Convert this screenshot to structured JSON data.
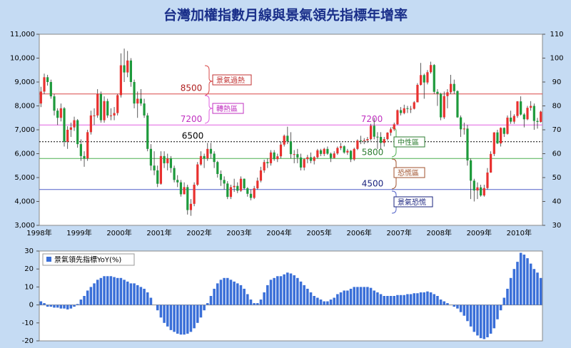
{
  "chart_data": [
    {
      "type": "candlestick",
      "title": "台灣加權指數月線與景氣領先指標年增率",
      "categories": [
        "1998年",
        null,
        null,
        null,
        null,
        null,
        null,
        null,
        null,
        null,
        null,
        null,
        "1999年",
        null,
        null,
        null,
        null,
        null,
        null,
        null,
        null,
        null,
        null,
        null,
        "2000年",
        null,
        null,
        null,
        null,
        null,
        null,
        null,
        null,
        null,
        null,
        null,
        "2001年",
        null,
        null,
        null,
        null,
        null,
        null,
        null,
        null,
        null,
        null,
        null,
        "2002年",
        null,
        null,
        null,
        null,
        null,
        null,
        null,
        null,
        null,
        null,
        null,
        "2003年",
        null,
        null,
        null,
        null,
        null,
        null,
        null,
        null,
        null,
        null,
        null,
        "2004年",
        null,
        null,
        null,
        null,
        null,
        null,
        null,
        null,
        null,
        null,
        null,
        "2005年",
        null,
        null,
        null,
        null,
        null,
        null,
        null,
        null,
        null,
        null,
        null,
        "2006年",
        null,
        null,
        null,
        null,
        null,
        null,
        null,
        null,
        null,
        null,
        null,
        "2007年",
        null,
        null,
        null,
        null,
        null,
        null,
        null,
        null,
        null,
        null,
        null,
        "2008年",
        null,
        null,
        null,
        null,
        null,
        null,
        null,
        null,
        null,
        null,
        null,
        "2009年",
        null,
        null,
        null,
        null,
        null,
        null,
        null,
        null,
        null,
        null,
        null,
        "2010年",
        null,
        null,
        null,
        null,
        null,
        null
      ],
      "open": [
        8100,
        8600,
        9200,
        9000,
        8400,
        7800,
        7500,
        7900,
        6500,
        7000,
        7100,
        7400,
        6400,
        5900,
        5800,
        6900,
        7600,
        7600,
        8500,
        7400,
        8200,
        7600,
        7600,
        7700,
        8450,
        9700,
        9400,
        9900,
        9000,
        8100,
        8300,
        8100,
        7600,
        6200,
        5500,
        5300,
        4740,
        5900,
        5600,
        5800,
        5400,
        4900,
        4800,
        4300,
        4600,
        3640,
        3900,
        4700,
        5550,
        5900,
        5800,
        6200,
        6000,
        5650,
        5150,
        4900,
        4750,
        4190,
        4600,
        4650,
        4450,
        4950,
        4550,
        4320,
        4150,
        4550,
        4870,
        5300,
        5650,
        5600,
        6050,
        5770,
        5890,
        6380,
        6750,
        6520,
        5980,
        5980,
        5840,
        5420,
        5770,
        5850,
        5700,
        5850,
        6140,
        5990,
        6200,
        6000,
        5820,
        6010,
        6240,
        6310,
        6050,
        6120,
        5760,
        6200,
        6550,
        6530,
        6560,
        6610,
        7170,
        6710,
        6700,
        6450,
        6610,
        6880,
        7020,
        7230,
        7820,
        7700,
        7900,
        7880,
        7880,
        8150,
        8880,
        9290,
        8980,
        9410,
        9710,
        8590,
        8510,
        7520,
        8410,
        8570,
        8920,
        8620,
        7520,
        7020,
        7050,
        5720,
        4870,
        4460,
        4590,
        4250,
        4560,
        5210,
        5990,
        6890,
        6430,
        7080,
        6830,
        7510,
        7340,
        7580,
        8190,
        7640,
        7440,
        7920,
        8000,
        7370,
        7330
      ],
      "high": [
        8800,
        9350,
        9300,
        9100,
        8500,
        7900,
        8100,
        7950,
        7150,
        7300,
        7550,
        7450,
        6600,
        6100,
        7000,
        7800,
        7900,
        8700,
        8600,
        8400,
        8300,
        7900,
        7950,
        8500,
        10200,
        10400,
        10300,
        10000,
        9100,
        8600,
        8700,
        8300,
        7700,
        6400,
        6100,
        5500,
        6100,
        6100,
        6000,
        5900,
        5500,
        5100,
        4900,
        4800,
        4700,
        4100,
        4800,
        5650,
        6100,
        6000,
        6450,
        6450,
        6100,
        5700,
        5300,
        5050,
        4850,
        4700,
        4950,
        4800,
        5050,
        4960,
        4600,
        4500,
        4650,
        5000,
        5450,
        5750,
        5800,
        6150,
        6150,
        6000,
        6500,
        6800,
        7130,
        6900,
        6150,
        6200,
        6000,
        5800,
        5950,
        6050,
        5900,
        6200,
        6200,
        6250,
        6300,
        6050,
        6100,
        6300,
        6450,
        6350,
        6200,
        6150,
        6250,
        6600,
        6750,
        6650,
        6700,
        7250,
        7500,
        6900,
        6900,
        6700,
        6900,
        7100,
        7300,
        7850,
        7950,
        8050,
        8000,
        8000,
        8200,
        8950,
        9800,
        9350,
        9500,
        9850,
        9750,
        8700,
        8550,
        8600,
        8700,
        9300,
        9100,
        8650,
        7600,
        7300,
        7200,
        5800,
        4950,
        4800,
        4700,
        4700,
        5400,
        6100,
        6900,
        7000,
        7100,
        7100,
        7600,
        7800,
        7650,
        8200,
        8400,
        7700,
        8000,
        8200,
        8100,
        7500,
        7800
      ],
      "low": [
        7950,
        8500,
        8850,
        8300,
        7600,
        7200,
        7350,
        6300,
        6200,
        6700,
        6950,
        6250,
        5700,
        5450,
        5700,
        6800,
        7200,
        7500,
        7300,
        7300,
        7500,
        7400,
        7400,
        7600,
        8350,
        9000,
        9200,
        8800,
        7900,
        7500,
        8000,
        7500,
        6100,
        5300,
        5100,
        4600,
        4700,
        5400,
        5300,
        5200,
        4800,
        4600,
        4200,
        4300,
        3450,
        3400,
        3800,
        4650,
        5500,
        5400,
        5700,
        5800,
        5400,
        5000,
        4650,
        4500,
        4100,
        4100,
        4400,
        4350,
        4400,
        4500,
        4200,
        4050,
        4100,
        4500,
        4800,
        5200,
        5400,
        5500,
        5700,
        5650,
        5800,
        6300,
        6400,
        5800,
        5600,
        5600,
        5300,
        5300,
        5600,
        5600,
        5550,
        5800,
        5900,
        5900,
        5950,
        5650,
        5800,
        5950,
        6150,
        6000,
        5950,
        5650,
        5700,
        6150,
        6400,
        6400,
        6450,
        6550,
        6600,
        6200,
        6200,
        6300,
        6550,
        6750,
        6950,
        7200,
        7600,
        7650,
        7700,
        7700,
        7850,
        8150,
        8850,
        8300,
        8900,
        9350,
        8500,
        8000,
        7400,
        7450,
        7900,
        8500,
        8500,
        7500,
        6700,
        6800,
        5500,
        4100,
        4000,
        4100,
        4200,
        4200,
        4500,
        5200,
        5900,
        6400,
        6300,
        6700,
        6800,
        7250,
        7250,
        7500,
        7600,
        7100,
        7400,
        7800,
        7000,
        7050,
        7300
      ],
      "close": [
        8600,
        9200,
        9000,
        8400,
        7800,
        7500,
        7900,
        6500,
        7000,
        7100,
        7400,
        6400,
        5900,
        5800,
        6900,
        7600,
        7600,
        8500,
        7400,
        8200,
        7600,
        7600,
        7700,
        8450,
        9700,
        9400,
        9900,
        9000,
        8100,
        8300,
        8100,
        7600,
        6200,
        5500,
        5300,
        4740,
        5900,
        5600,
        5800,
        5400,
        4900,
        4800,
        4300,
        4600,
        3640,
        3900,
        4700,
        5550,
        5900,
        5800,
        6200,
        6000,
        5650,
        5150,
        4900,
        4750,
        4190,
        4600,
        4650,
        4450,
        4950,
        4550,
        4320,
        4150,
        4550,
        4870,
        5300,
        5650,
        5600,
        6050,
        5770,
        5890,
        6380,
        6750,
        6520,
        5980,
        5980,
        5840,
        5420,
        5770,
        5850,
        5700,
        5850,
        6140,
        5990,
        6200,
        6000,
        5820,
        6010,
        6240,
        6310,
        6050,
        6120,
        5760,
        6200,
        6550,
        6530,
        6560,
        6610,
        7170,
        6710,
        6700,
        6450,
        6610,
        6880,
        7020,
        7230,
        7820,
        7700,
        7900,
        7880,
        7880,
        8150,
        8880,
        9290,
        8980,
        9410,
        9710,
        8590,
        8510,
        7520,
        8410,
        8570,
        8920,
        8620,
        7520,
        7020,
        7050,
        5720,
        4870,
        4460,
        4590,
        4250,
        4560,
        5210,
        5990,
        6890,
        6430,
        7080,
        6830,
        7510,
        7340,
        7580,
        8190,
        7640,
        7440,
        7920,
        8000,
        7370,
        7330,
        7760
      ],
      "up_color": "#e8312f",
      "down_color": "#1e9a3c",
      "ylim": [
        3000,
        11000
      ],
      "yticks": [
        {
          "value": 3000,
          "label": "3,000"
        },
        {
          "value": 4000,
          "label": "4,000"
        },
        {
          "value": 5000,
          "label": "5,000"
        },
        {
          "value": 6000,
          "label": "6,000"
        },
        {
          "value": 7000,
          "label": "7,000"
        },
        {
          "value": 8000,
          "label": "8,000"
        },
        {
          "value": 9000,
          "label": "9,000"
        },
        {
          "value": 10000,
          "label": "10,000"
        },
        {
          "value": 11000,
          "label": "11,000"
        }
      ],
      "y2lim": [
        30,
        110
      ],
      "y2ticks": [
        30,
        40,
        50,
        60,
        70,
        80,
        90,
        100,
        110
      ],
      "ref_lines": [
        {
          "value": 8500,
          "color": "#d94848",
          "text_color": "#b02020",
          "dash": false
        },
        {
          "value": 7200,
          "color": "#e060e0",
          "text_color": "#c030c0",
          "dash": false
        },
        {
          "value": 6500,
          "color": "#000000",
          "text_color": "#000000",
          "dash": true
        },
        {
          "value": 5800,
          "color": "#4caf50",
          "text_color": "#2e7d32",
          "dash": false
        },
        {
          "value": 4500,
          "color": "#5060c8",
          "text_color": "#1a237e",
          "dash": false
        }
      ],
      "annotations": [
        {
          "text": "景氣過熱",
          "color": "#c03030"
        },
        {
          "text": "轉熱區",
          "color": "#c030c0"
        },
        {
          "text": "中性區",
          "color": "#2e7d32"
        },
        {
          "text": "恐慌區",
          "color": "#a0522d"
        },
        {
          "text": "景氣恐慌",
          "color": "#1a237e"
        }
      ]
    },
    {
      "type": "bar",
      "series": [
        {
          "name": "景氣領先指標YoY(%)",
          "color": "#3a6fd8",
          "values": [
            2,
            1,
            -1,
            -1,
            -1.5,
            -1.5,
            -2,
            -2,
            -2.5,
            -2,
            -1,
            0.5,
            3,
            5,
            8,
            10,
            12,
            14,
            15,
            16,
            16,
            16,
            15.5,
            15,
            15,
            14,
            13,
            12,
            12,
            11,
            10,
            9,
            7,
            4,
            0,
            -3,
            -7,
            -10,
            -12,
            -14,
            -15,
            -16,
            -16.5,
            -16.5,
            -16,
            -15,
            -13,
            -10,
            -7,
            -3,
            1,
            5,
            9,
            12,
            14,
            15,
            15,
            14,
            13,
            12,
            11,
            9,
            6,
            3,
            1,
            1,
            3,
            7,
            11,
            14,
            15,
            16,
            16,
            17,
            18,
            17.5,
            16.5,
            15,
            13,
            11,
            9,
            7,
            5,
            4,
            3,
            2,
            2,
            3,
            4,
            6,
            7,
            8,
            8,
            9,
            10,
            10,
            10,
            10,
            10,
            9.5,
            8,
            7,
            6,
            5,
            5,
            5,
            5,
            5.5,
            5.5,
            5.5,
            6,
            6,
            6.5,
            6.5,
            7,
            7,
            7.5,
            7,
            6,
            5,
            3,
            2,
            1,
            0,
            -1,
            -2,
            -4,
            -6,
            -9,
            -12,
            -15,
            -17,
            -18.5,
            -19,
            -18,
            -16,
            -13,
            -8,
            -3,
            4,
            9,
            15,
            20,
            24,
            29,
            28,
            26,
            23,
            20,
            18,
            15
          ]
        }
      ],
      "ylim": [
        -20,
        30
      ],
      "yticks": [
        -20,
        -10,
        0,
        10,
        20,
        30
      ]
    }
  ]
}
